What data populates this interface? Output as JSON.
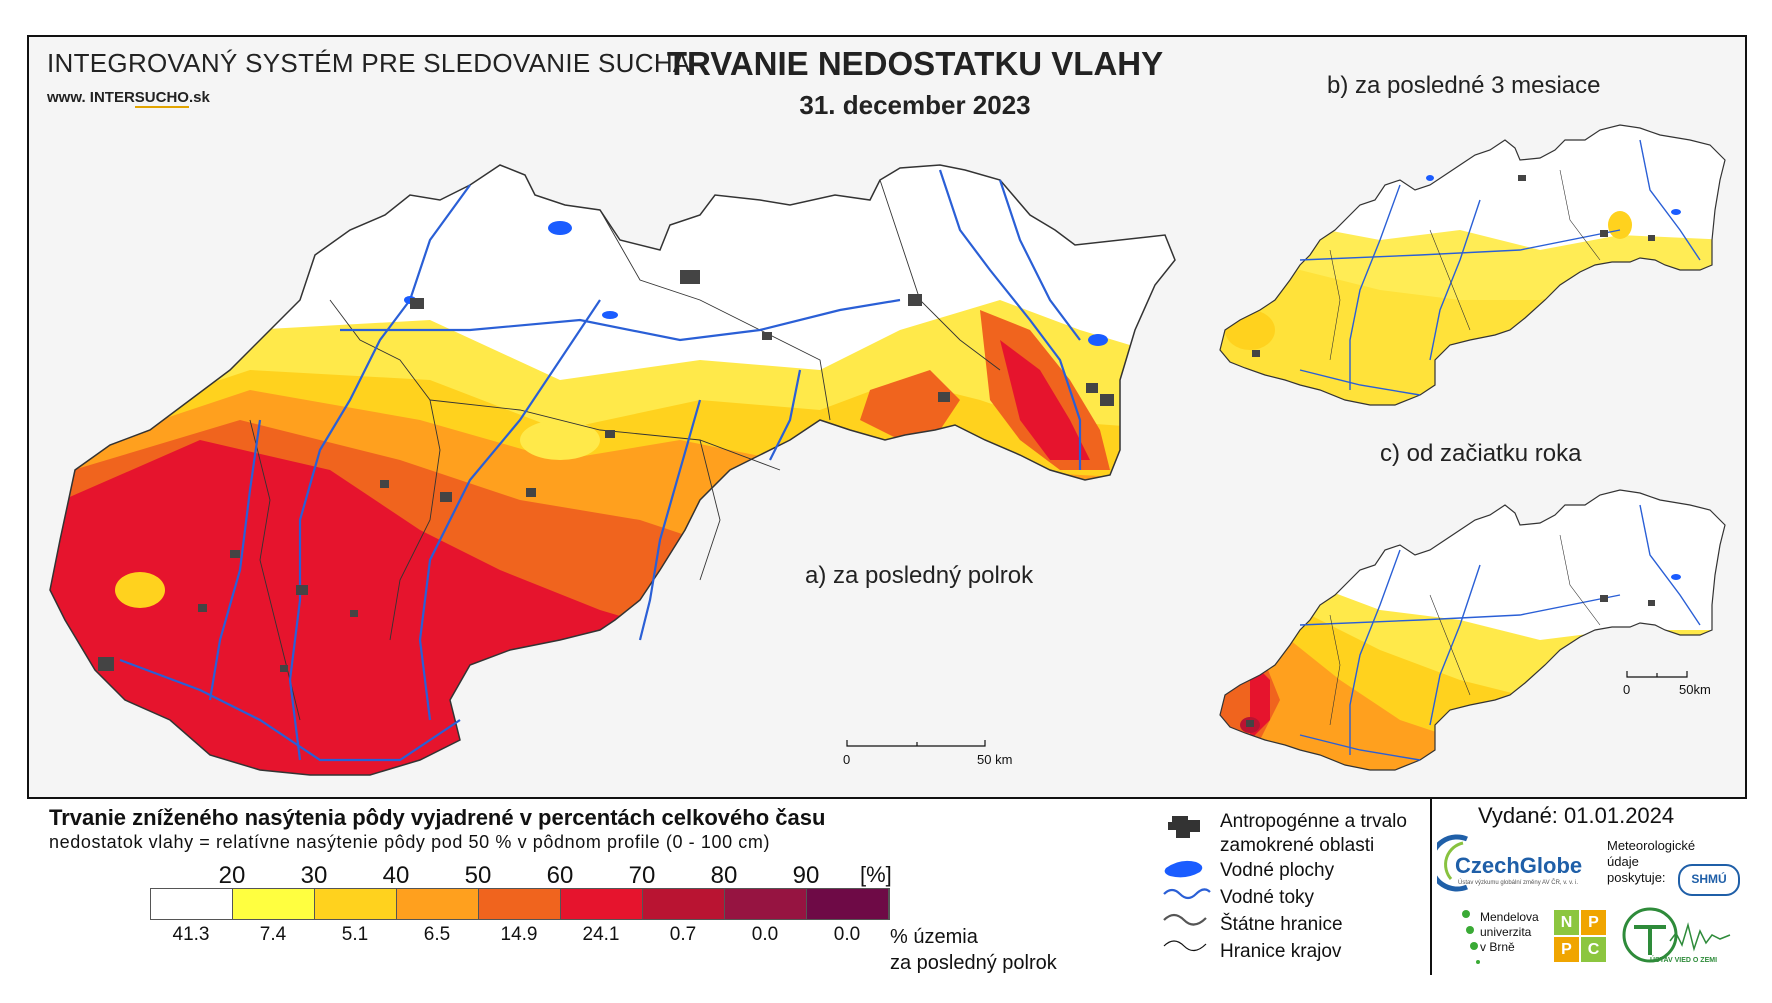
{
  "header": {
    "system_title": "INTEGROVANÝ SYSTÉM PRE SLEDOVANIE SUCHA",
    "url_prefix": "www. INTER",
    "url_highlight": "SUCHO",
    "url_suffix": ".sk",
    "title": "TRVANIE NEDOSTATKU VLAHY",
    "date": "31. december 2023"
  },
  "panels": {
    "main_label": "a) za posledný polrok",
    "b_label": "b) za posledné 3 mesiace",
    "c_label": "c) od začiatku roka"
  },
  "scalebars": {
    "main_zero": "0",
    "main_end": "50 km",
    "small_zero": "0",
    "small_end": "50km"
  },
  "legend": {
    "title": "Trvanie zníženého nasýtenia pôdy vyjadrené v percentách celkového času",
    "subtitle": "nedostatok vlahy = relatívne nasýtenie pôdy pod 50 % v pôdnom profile (0 - 100 cm)",
    "unit": "[%]",
    "thresholds": [
      "20",
      "30",
      "40",
      "50",
      "60",
      "70",
      "80",
      "90"
    ],
    "colors": [
      "#ffffff",
      "#ffff40",
      "#ffd21e",
      "#ffa01e",
      "#f0641e",
      "#e6142d",
      "#b91432",
      "#961441",
      "#6e0a46"
    ],
    "percentages": [
      "41.3",
      "7.4",
      "5.1",
      "6.5",
      "14.9",
      "24.1",
      "0.7",
      "0.0",
      "0.0"
    ],
    "percent_caption_line1": "% územia",
    "percent_caption_line2": "za posledný polrok"
  },
  "symbols": [
    {
      "label_line1": "Antropogénne a trvalo",
      "label_line2": "zamokrené oblasti",
      "icon": "urban-area-icon"
    },
    {
      "label_line1": "Vodné plochy",
      "icon": "water-body-icon"
    },
    {
      "label_line1": "Vodné toky",
      "icon": "river-icon"
    },
    {
      "label_line1": "Štátne hranice",
      "icon": "state-border-icon"
    },
    {
      "label_line1": "Hranice krajov",
      "icon": "region-border-icon"
    }
  ],
  "issued": "Vydané: 01.01.2024",
  "logos": {
    "czechglobe": "CzechGlobe",
    "czechglobe_sub": "Ústav výzkumu globální změny AV ČR, v. v. i.",
    "meteo_line1": "Meteorologické",
    "meteo_line2": "údaje",
    "meteo_line3": "poskytuje:",
    "shmu": "SHMÚ",
    "mendel_line1": "Mendelova",
    "mendel_line2": "univerzita",
    "mendel_line3": "v Brně",
    "nppc": [
      "N",
      "P",
      "P",
      "C"
    ],
    "ustav": "ÚSTAV VIED O ZEMI"
  }
}
